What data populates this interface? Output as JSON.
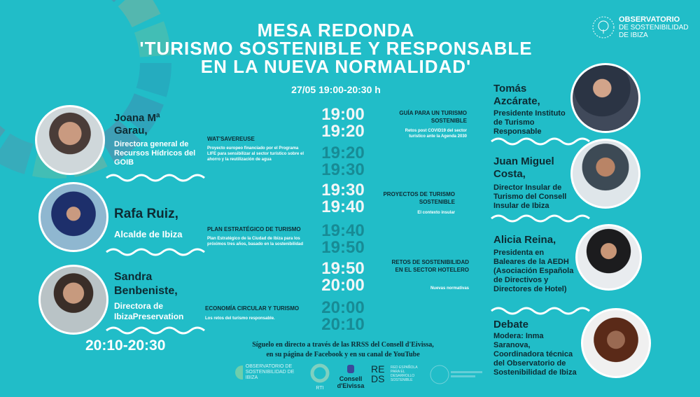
{
  "title_lines": [
    "MESA REDONDA",
    "'TURISMO SOSTENIBLE Y RESPONSABLE",
    "EN LA NUEVA NORMALIDAD'"
  ],
  "date": "27/05 19:00-20:30 h",
  "org_logo": {
    "line1": "OBSERVATORIO",
    "line2": "DE SOSTENIBILIDAD",
    "line3": "DE IBIZA"
  },
  "left_speakers": [
    {
      "name": "Joana Mª Garau,",
      "role": "Directora general de Recursos Hídricos del GOIB"
    },
    {
      "name": "Rafa Ruiz,",
      "role": "Alcalde de Ibiza"
    },
    {
      "name": "Sandra Benbeniste,",
      "role": "Directora de IbizaPreservation"
    }
  ],
  "right_speakers": [
    {
      "name": "Tomás Azcárate,",
      "role": "Presidente Instituto de Turismo Responsable"
    },
    {
      "name": "Juan Miguel Costa,",
      "role": "Director Insular de Turismo del Consell Insular de Ibiza"
    },
    {
      "name": "Alicia Reina,",
      "role": "Presidenta en Baleares de la AEDH (Asociación Española de Directivos y Directores de Hotel)"
    },
    {
      "name": "Debate",
      "role": "Modera: Inma Saranova, Coordinadora técnica del Observatorio de Sostenibilidad de Ibiza"
    }
  ],
  "times": [
    "19:00",
    "19:20",
    "19:20",
    "19:30",
    "19:30",
    "19:40",
    "19:40",
    "19:50",
    "19:50",
    "20:00",
    "20:00",
    "20:10"
  ],
  "talks": [
    {
      "title": "GUÍA PARA UN TURISMO SOSTENIBLE",
      "desc": "Retos post COVID19 del sector turístico ante la Agenda 2030"
    },
    {
      "title": "WAT'SAVEREUSE",
      "desc": "Proyecto europeo financiado por el Programa LIFE para sensibilizar al sector turístico sobre el ahorro y la reutilización de agua"
    },
    {
      "title": "PROYECTOS DE TURISMO SOSTENIBLE",
      "desc": "El contexto insular"
    },
    {
      "title": "PLAN ESTRATÉGICO DE TURISMO",
      "desc": "Plan Estratégico de la Ciudad de Ibiza para los próximos tres años, basado en la sostenibilidad"
    },
    {
      "title": "RETOS DE SOSTENIBILIDAD EN EL SECTOR HOTELERO",
      "desc": "Nuevas normativas"
    },
    {
      "title": "ECONOMÍA CIRCULAR Y TURISMO",
      "desc": "Los retos del turismo responsable."
    }
  ],
  "debate_time": "20:10-20:30",
  "follow_lines": [
    "Síguelo en directo a través de las RRSS del Consell d'Eivissa,",
    "en su página de Facebook y en su canal de YouTube"
  ],
  "bottom_logos": {
    "obs": "OBSERVATORIO DE SOSTENIBILIDAD DE IBIZA",
    "rti": "RTI",
    "consell": "Consell d'Eivissa",
    "reds": "REDS",
    "reds_sub": "RED ESPAÑOLA PARA EL DESARROLLO SOSTENIBLE"
  },
  "colors": {
    "background": "#21bdc8",
    "dark_text": "#0d2b33",
    "dark_time": "#178b95"
  }
}
